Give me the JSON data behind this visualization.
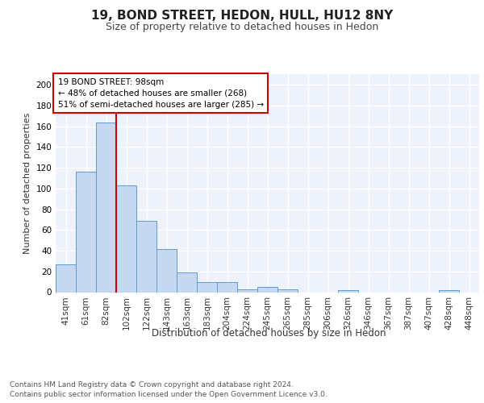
{
  "title": "19, BOND STREET, HEDON, HULL, HU12 8NY",
  "subtitle": "Size of property relative to detached houses in Hedon",
  "xlabel": "Distribution of detached houses by size in Hedon",
  "ylabel": "Number of detached properties",
  "categories": [
    "41sqm",
    "61sqm",
    "82sqm",
    "102sqm",
    "122sqm",
    "143sqm",
    "163sqm",
    "183sqm",
    "204sqm",
    "224sqm",
    "245sqm",
    "265sqm",
    "285sqm",
    "306sqm",
    "326sqm",
    "346sqm",
    "367sqm",
    "387sqm",
    "407sqm",
    "428sqm",
    "448sqm"
  ],
  "values": [
    27,
    116,
    164,
    103,
    69,
    42,
    19,
    10,
    10,
    3,
    5,
    3,
    0,
    0,
    2,
    0,
    0,
    0,
    0,
    2,
    0
  ],
  "bar_color": "#c5d8f0",
  "bar_edge_color": "#5b9bd5",
  "redline_index": 2.5,
  "annotation_box_text": "19 BOND STREET: 98sqm\n← 48% of detached houses are smaller (268)\n51% of semi-detached houses are larger (285) →",
  "annotation_box_color": "#ffffff",
  "annotation_box_edge_color": "#cc0000",
  "footnote_line1": "Contains HM Land Registry data © Crown copyright and database right 2024.",
  "footnote_line2": "Contains public sector information licensed under the Open Government Licence v3.0.",
  "ylim": [
    0,
    210
  ],
  "yticks": [
    0,
    20,
    40,
    60,
    80,
    100,
    120,
    140,
    160,
    180,
    200
  ],
  "background_color": "#eef2fa",
  "grid_color": "#ffffff",
  "title_fontsize": 11,
  "subtitle_fontsize": 9,
  "axis_label_fontsize": 8,
  "tick_fontsize": 7.5,
  "footnote_fontsize": 6.5,
  "annotation_fontsize": 7.5
}
